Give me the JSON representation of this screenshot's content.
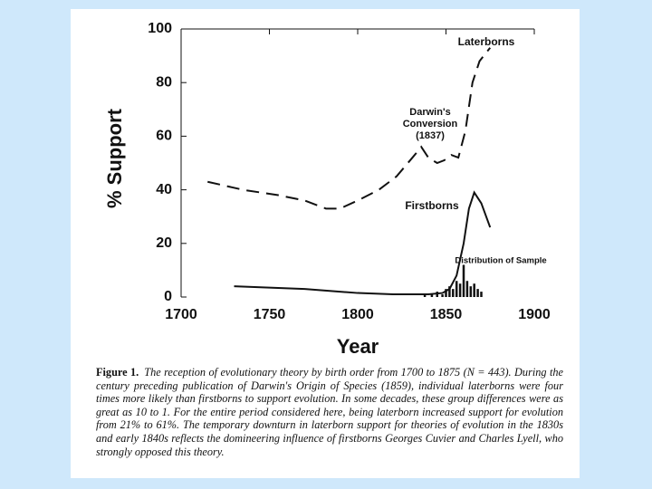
{
  "chart_data": {
    "type": "line",
    "y_label": "% Support",
    "x_label": "Year",
    "xlim": [
      1700,
      1900
    ],
    "xticks": [
      1700,
      1750,
      1800,
      1850,
      1900
    ],
    "ylim": [
      0,
      100
    ],
    "yticks": [
      0,
      20,
      40,
      60,
      80,
      100
    ],
    "annotations": [
      "Darwin's Conversion (1837)"
    ],
    "series": [
      {
        "name": "Laterborns",
        "color": "#111111",
        "style": "dashed",
        "x": [
          1715,
          1735,
          1755,
          1770,
          1782,
          1790,
          1800,
          1812,
          1822,
          1831,
          1836,
          1840,
          1845,
          1849,
          1853,
          1857,
          1861,
          1865,
          1869,
          1875
        ],
        "values": [
          43,
          40,
          38,
          36,
          33,
          33,
          36,
          40,
          45,
          52,
          56,
          52,
          50,
          51,
          53,
          52,
          62,
          80,
          88,
          93
        ]
      },
      {
        "name": "Firstborns",
        "color": "#111111",
        "style": "solid",
        "x": [
          1730,
          1750,
          1770,
          1790,
          1800,
          1820,
          1840,
          1848,
          1852,
          1856,
          1860,
          1863,
          1866,
          1870,
          1875
        ],
        "values": [
          4,
          3.5,
          3,
          2,
          1.5,
          1,
          1,
          1.5,
          3,
          8,
          20,
          33,
          39,
          35,
          26
        ]
      },
      {
        "name": "Distribution of Sample",
        "color": "#111111",
        "style": "spikes",
        "x": [
          1838,
          1842,
          1845,
          1848,
          1850,
          1852,
          1854,
          1856,
          1858,
          1860,
          1862,
          1864,
          1866,
          1868,
          1870
        ],
        "values": [
          1,
          1,
          2,
          1,
          3,
          4,
          3,
          6,
          5,
          12,
          6,
          4,
          5,
          3,
          2
        ]
      }
    ]
  },
  "caption": {
    "label": "Figure 1.",
    "text": "The reception of evolutionary theory by birth order from 1700 to 1875 (N = 443). During the century preceding publication of Darwin's Origin of Species (1859), individual laterborns were four times more likely than firstborns to support evolution. In some decades, these group differences were as great as 10 to 1. For the entire period considered here, being laterborn increased support for evolution from 21% to 61%. The temporary downturn in laterborn support for theories of evolution in the 1830s and early 1840s reflects the domineering influence of firstborns Georges Cuvier and Charles Lyell, who strongly opposed this theory."
  }
}
